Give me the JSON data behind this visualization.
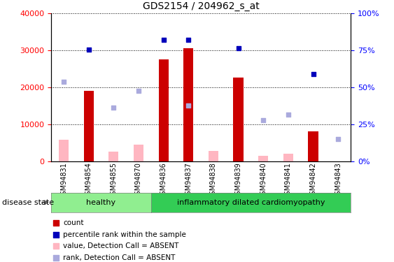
{
  "title": "GDS2154 / 204962_s_at",
  "samples": [
    "GSM94831",
    "GSM94854",
    "GSM94855",
    "GSM94870",
    "GSM94836",
    "GSM94837",
    "GSM94838",
    "GSM94839",
    "GSM94840",
    "GSM94841",
    "GSM94842",
    "GSM94843"
  ],
  "bar_values": [
    0,
    19000,
    0,
    0,
    27500,
    30500,
    0,
    22500,
    0,
    0,
    8000,
    0
  ],
  "bar_absent_values": [
    5800,
    0,
    2500,
    4500,
    0,
    0,
    2700,
    0,
    1500,
    2000,
    0,
    0
  ],
  "blue_pct": [
    null,
    75.5,
    null,
    null,
    81.75,
    81.75,
    null,
    76.25,
    null,
    null,
    58.75,
    null
  ],
  "blue_absent_pct": [
    53.75,
    null,
    36.25,
    47.5,
    null,
    37.5,
    null,
    null,
    27.5,
    31.25,
    null,
    15.0
  ],
  "ylim_left": [
    0,
    40000
  ],
  "yticks_left": [
    0,
    10000,
    20000,
    30000,
    40000
  ],
  "yticks_right": [
    0,
    25,
    50,
    75,
    100
  ],
  "right_tick_labels": [
    "0%",
    "25%",
    "50%",
    "75%",
    "100%"
  ],
  "healthy_color": "#90EE90",
  "cardio_color": "#33CC55",
  "bar_color": "#CC0000",
  "bar_absent_color": "#FFB6C1",
  "blue_color": "#0000BB",
  "blue_absent_color": "#AAAADD",
  "disease_state_label": "disease state",
  "legend_items": [
    "count",
    "percentile rank within the sample",
    "value, Detection Call = ABSENT",
    "rank, Detection Call = ABSENT"
  ],
  "healthy_count": 4,
  "total_count": 12
}
